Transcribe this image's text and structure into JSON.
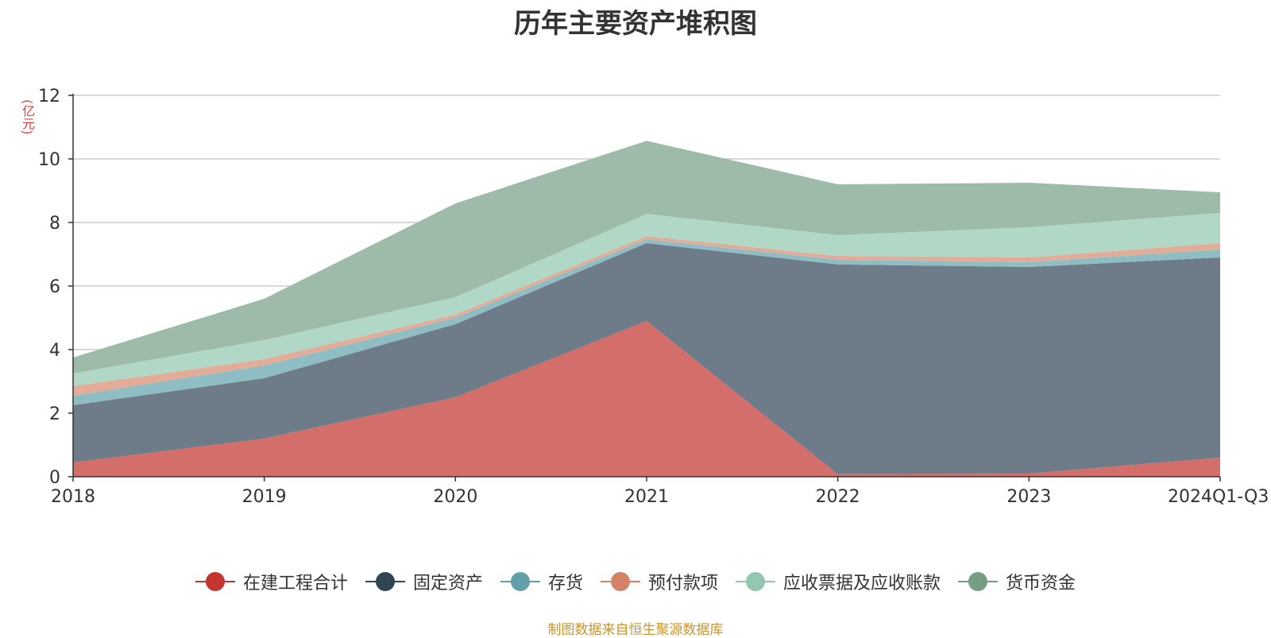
{
  "chart_data": {
    "type": "area",
    "stacked": true,
    "title": "历年主要资产堆积图",
    "unit_label": "(亿元)",
    "categories": [
      "2018",
      "2019",
      "2020",
      "2021",
      "2022",
      "2023",
      "2024Q1-Q3"
    ],
    "ylim": [
      0,
      12
    ],
    "yticks": [
      0,
      2,
      4,
      6,
      8,
      10,
      12
    ],
    "grid": true,
    "legend_position": "bottom",
    "series": [
      {
        "name": "在建工程合计",
        "color": "#c23531",
        "fill": "#d36e6b",
        "values": [
          0.45,
          1.2,
          2.5,
          4.9,
          0.08,
          0.1,
          0.6
        ]
      },
      {
        "name": "固定资产",
        "color": "#2f4554",
        "fill": "#6d7c88",
        "values": [
          1.8,
          1.9,
          2.3,
          2.45,
          6.6,
          6.5,
          6.3
        ]
      },
      {
        "name": "存货",
        "color": "#61a0a8",
        "fill": "#8ebec3",
        "values": [
          0.3,
          0.4,
          0.2,
          0.12,
          0.15,
          0.15,
          0.25
        ]
      },
      {
        "name": "预付款项",
        "color": "#d48265",
        "fill": "#e2ac98",
        "values": [
          0.3,
          0.2,
          0.1,
          0.1,
          0.12,
          0.15,
          0.2
        ]
      },
      {
        "name": "应收票据及应收账款",
        "color": "#91c7ae",
        "fill": "#b1d8c6",
        "values": [
          0.4,
          0.6,
          0.55,
          0.7,
          0.65,
          0.95,
          0.95
        ]
      },
      {
        "name": "货币资金",
        "color": "#749f83",
        "fill": "#9dbba8",
        "values": [
          0.5,
          1.3,
          2.95,
          2.3,
          1.6,
          1.4,
          0.65
        ]
      }
    ]
  },
  "footer": {
    "source": "制图数据来自恒生聚源数据库"
  }
}
